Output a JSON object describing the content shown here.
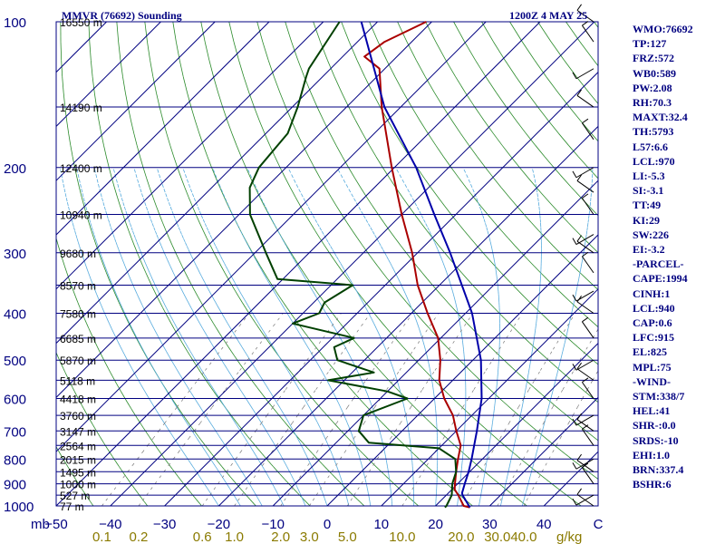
{
  "chart_data": {
    "type": "line",
    "title": "MMVR (76692) Sounding",
    "time_label": "1200Z  4 MAY 25",
    "pressure_axis": {
      "ticks": [
        100,
        200,
        300,
        400,
        500,
        600,
        700,
        800,
        900,
        1000
      ],
      "label": "mb",
      "range": [
        100,
        1000
      ],
      "scale": "log"
    },
    "temperature_axis": {
      "ticks": [
        -50,
        -40,
        -30,
        -20,
        -10,
        0,
        10,
        20,
        30,
        40
      ],
      "range": [
        -50,
        50
      ],
      "skew": true
    },
    "right_axis_label": "C",
    "mixing_ratio_axis": {
      "ticks": [
        "0.1",
        "0.2",
        "0.6",
        "1.0",
        "2.0",
        "3.0",
        "5.0",
        "10.0",
        "20.0",
        "30.0",
        "40.0"
      ],
      "unit": "g/kg"
    },
    "height_labels": [
      {
        "p": 100,
        "text": "16550 m"
      },
      {
        "p": 150,
        "text": "14190 m"
      },
      {
        "p": 200,
        "text": "12400 m"
      },
      {
        "p": 250,
        "text": "10940 m"
      },
      {
        "p": 300,
        "text": "9680 m"
      },
      {
        "p": 350,
        "text": "8570 m"
      },
      {
        "p": 400,
        "text": "7580 m"
      },
      {
        "p": 450,
        "text": "6685 m"
      },
      {
        "p": 500,
        "text": "5870 m"
      },
      {
        "p": 550,
        "text": "5118 m"
      },
      {
        "p": 600,
        "text": "4418 m"
      },
      {
        "p": 650,
        "text": "3760 m"
      },
      {
        "p": 700,
        "text": "3147 m"
      },
      {
        "p": 750,
        "text": "2564 m"
      },
      {
        "p": 800,
        "text": "2015 m"
      },
      {
        "p": 850,
        "text": "1495 m"
      },
      {
        "p": 900,
        "text": "1000 m"
      },
      {
        "p": 950,
        "text": "527 m"
      },
      {
        "p": 1000,
        "text": "77 m"
      }
    ],
    "series": [
      {
        "role": "temperature",
        "color": "#aa0000",
        "points": [
          [
            1007,
            26.6
          ],
          [
            1000,
            25.2
          ],
          [
            950,
            22.2
          ],
          [
            925,
            20.5
          ],
          [
            900,
            19.5
          ],
          [
            850,
            17.5
          ],
          [
            800,
            15.5
          ],
          [
            750,
            13.5
          ],
          [
            700,
            10.0
          ],
          [
            650,
            6.5
          ],
          [
            600,
            1.8
          ],
          [
            550,
            -2.5
          ],
          [
            500,
            -6.0
          ],
          [
            450,
            -10.5
          ],
          [
            400,
            -17.0
          ],
          [
            350,
            -24.0
          ],
          [
            300,
            -31.0
          ],
          [
            250,
            -40.0
          ],
          [
            200,
            -50.5
          ],
          [
            150,
            -63.5
          ],
          [
            125,
            -71.0
          ],
          [
            118,
            -76.0
          ],
          [
            110,
            -75.0
          ],
          [
            100,
            -71.0
          ]
        ]
      },
      {
        "role": "dewpoint",
        "color": "#004000",
        "points": [
          [
            1007,
            22.0
          ],
          [
            1000,
            22.0
          ],
          [
            950,
            21.0
          ],
          [
            900,
            19.0
          ],
          [
            850,
            17.5
          ],
          [
            800,
            15.0
          ],
          [
            760,
            10.0
          ],
          [
            740,
            -4.0
          ],
          [
            700,
            -8.0
          ],
          [
            650,
            -10.0
          ],
          [
            600,
            -5.0
          ],
          [
            580,
            -10.0
          ],
          [
            550,
            -23.0
          ],
          [
            530,
            -16.0
          ],
          [
            500,
            -25.0
          ],
          [
            470,
            -28.0
          ],
          [
            450,
            -26.0
          ],
          [
            420,
            -40.0
          ],
          [
            400,
            -37.0
          ],
          [
            380,
            -38.0
          ],
          [
            350,
            -36.0
          ],
          [
            340,
            -51.0
          ],
          [
            300,
            -58.0
          ],
          [
            250,
            -68.0
          ],
          [
            220,
            -73.0
          ],
          [
            200,
            -75.0
          ],
          [
            170,
            -76.0
          ],
          [
            150,
            -79.0
          ],
          [
            130,
            -83.0
          ],
          [
            125,
            -84.0
          ],
          [
            100,
            -87.0
          ]
        ]
      },
      {
        "role": "parcel",
        "color": "#0000aa",
        "points": [
          [
            1007,
            26.6
          ],
          [
            950,
            23.0
          ],
          [
            940,
            22.5
          ],
          [
            900,
            21.3
          ],
          [
            850,
            19.8
          ],
          [
            800,
            18.0
          ],
          [
            700,
            13.8
          ],
          [
            600,
            8.7
          ],
          [
            500,
            1.5
          ],
          [
            400,
            -8.8
          ],
          [
            300,
            -24.0
          ],
          [
            250,
            -34.0
          ],
          [
            200,
            -46.0
          ],
          [
            150,
            -63.0
          ],
          [
            120,
            -74.0
          ],
          [
            100,
            -83.0
          ]
        ]
      }
    ],
    "parameters": [
      "WMO:76692",
      "TP:127",
      "FRZ:572",
      "WB0:589",
      "PW:2.08",
      "RH:70.3",
      "MAXT:32.4",
      "TH:5793",
      "L57:6.6",
      "LCL:970",
      "LI:-5.3",
      "SI:-3.1",
      "TT:49",
      "KI:29",
      "SW:226",
      "EI:-3.2",
      "-PARCEL-",
      "CAPE:1994",
      "CINH:1",
      "LCL:940",
      "CAP:0.6",
      "LFC:915",
      "EL:825",
      "MPL:75",
      "-WIND-",
      "STM:338/7",
      "HEL:41",
      "SHR-:0.0",
      "SRDS:-10",
      "EHI:1.0",
      "BRN:337.4",
      "BSHR:6"
    ],
    "colors": {
      "isobar": "#000080",
      "isotherm": "#000080",
      "dry_adiabat": "#2a8a2a",
      "moist_adiabat": "#55aadd",
      "mixing_ratio": "#777777",
      "axis_text": "#000080",
      "mixing_text": "#8a7a00",
      "height_text": "#000000"
    }
  }
}
